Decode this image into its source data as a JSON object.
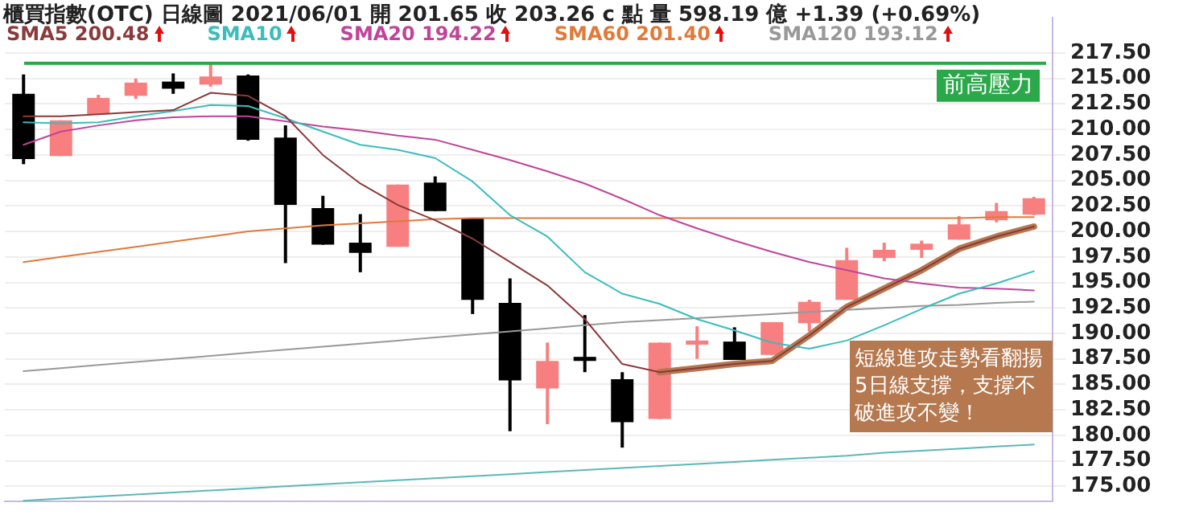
{
  "chart_data": {
    "type": "candlestick",
    "title": "櫃買指數(OTC)  日線圖  2021/06/01  開 201.65  收 203.26 c 點  量 598.19 億  +1.39 (+0.69%)",
    "categories": [
      null,
      null,
      null,
      null,
      null,
      null,
      null,
      null,
      null,
      null,
      null,
      null,
      null,
      null,
      null,
      null,
      null,
      null,
      null,
      null,
      null,
      null,
      null,
      null,
      null,
      null,
      null,
      null
    ],
    "ohlc": [
      [
        213.5,
        215.4,
        206.6,
        207.1
      ],
      [
        207.4,
        210.9,
        207.4,
        210.9
      ],
      [
        211.5,
        213.4,
        211.5,
        213.1
      ],
      [
        213.3,
        215.0,
        213.0,
        214.6
      ],
      [
        214.7,
        215.5,
        213.5,
        214.0
      ],
      [
        214.4,
        216.6,
        214.2,
        215.2
      ],
      [
        215.3,
        215.4,
        208.9,
        209.0
      ],
      [
        209.2,
        210.4,
        196.9,
        202.6
      ],
      [
        202.3,
        203.5,
        198.7,
        198.7
      ],
      [
        198.9,
        201.7,
        196.0,
        197.9
      ],
      [
        198.5,
        204.6,
        198.5,
        204.6
      ],
      [
        204.8,
        205.4,
        202.0,
        202.0
      ],
      [
        201.3,
        201.3,
        191.9,
        193.3
      ],
      [
        193.0,
        195.4,
        180.4,
        185.4
      ],
      [
        184.6,
        189.1,
        181.1,
        187.3
      ],
      [
        187.7,
        191.8,
        186.2,
        187.3
      ],
      [
        185.5,
        186.2,
        178.8,
        181.3
      ],
      [
        181.6,
        189.1,
        181.6,
        189.1
      ],
      [
        188.9,
        190.7,
        187.5,
        189.3
      ],
      [
        189.2,
        190.6,
        187.4,
        187.4
      ],
      [
        187.9,
        191.1,
        187.9,
        191.1
      ],
      [
        191.0,
        193.3,
        190.2,
        193.1
      ],
      [
        193.3,
        198.4,
        193.3,
        197.2
      ],
      [
        197.4,
        198.9,
        197.1,
        198.2
      ],
      [
        198.2,
        199.1,
        197.4,
        198.8
      ],
      [
        199.2,
        201.5,
        199.2,
        200.7
      ],
      [
        201.1,
        202.8,
        200.9,
        202.0
      ],
      [
        201.65,
        203.4,
        201.6,
        203.26
      ]
    ],
    "colors": [
      "#000000",
      "#f77f7f",
      "#f77f7f",
      "#f77f7f",
      "#000000",
      "#f77f7f",
      "#000000",
      "#000000",
      "#000000",
      "#000000",
      "#f77f7f",
      "#000000",
      "#000000",
      "#000000",
      "#f77f7f",
      "#000000",
      "#000000",
      "#f77f7f",
      "#f77f7f",
      "#000000",
      "#f77f7f",
      "#f77f7f",
      "#f77f7f",
      "#f77f7f",
      "#f77f7f",
      "#f77f7f",
      "#f77f7f",
      "#f77f7f"
    ],
    "series": [
      {
        "type": "line",
        "name": "SMA5 200.48",
        "color": "#8a3a3a",
        "values": [
          211.3,
          211.3,
          211.5,
          211.7,
          211.9,
          213.6,
          213.3,
          211.3,
          207.5,
          204.7,
          202.6,
          201.1,
          199.3,
          197.0,
          194.7,
          191.4,
          187.0,
          186.2,
          186.6,
          187.0,
          187.3,
          189.8,
          192.6,
          194.4,
          196.2,
          198.3,
          199.5,
          200.48
        ]
      },
      {
        "type": "line",
        "name": "SMA10",
        "color": "#3cbcbc",
        "values": [
          210.7,
          210.6,
          210.7,
          211.3,
          211.8,
          212.4,
          212.3,
          211.1,
          209.8,
          208.5,
          208.0,
          207.2,
          204.9,
          201.6,
          199.5,
          196.0,
          193.9,
          192.9,
          191.4,
          190.3,
          189.1,
          188.5,
          189.3,
          190.8,
          192.4,
          193.9,
          194.9,
          196.1
        ]
      },
      {
        "type": "line",
        "name": "SMA20 194.22",
        "color": "#c0449a",
        "values": [
          208.5,
          209.8,
          210.4,
          210.9,
          211.2,
          211.3,
          211.3,
          210.8,
          210.3,
          209.9,
          209.4,
          209.0,
          208.0,
          207.0,
          205.9,
          204.7,
          203.2,
          201.6,
          200.3,
          199.1,
          198.0,
          197.0,
          196.2,
          195.4,
          194.9,
          194.5,
          194.4,
          194.22
        ]
      },
      {
        "type": "line",
        "name": "SMA60 201.40",
        "color": "#e07a3a",
        "values": [
          197.0,
          197.5,
          198.0,
          198.5,
          199.0,
          199.5,
          200.0,
          200.3,
          200.6,
          200.8,
          201.0,
          201.2,
          201.3,
          201.3,
          201.3,
          201.3,
          201.3,
          201.3,
          201.3,
          201.3,
          201.3,
          201.3,
          201.3,
          201.3,
          201.3,
          201.3,
          201.4,
          201.4
        ]
      },
      {
        "type": "line",
        "name": "SMA120 193.12",
        "color": "#999999",
        "values": [
          186.3,
          186.6,
          186.9,
          187.2,
          187.5,
          187.8,
          188.1,
          188.4,
          188.7,
          189.0,
          189.3,
          189.6,
          189.9,
          190.2,
          190.5,
          190.8,
          191.1,
          191.3,
          191.5,
          191.7,
          191.9,
          192.1,
          192.3,
          192.5,
          192.7,
          192.8,
          193.0,
          193.12
        ]
      },
      {
        "type": "line",
        "color": "#5cb8b8",
        "values": [
          173.6,
          173.8,
          174.0,
          174.2,
          174.4,
          174.6,
          174.8,
          175.0,
          175.2,
          175.4,
          175.6,
          175.8,
          176.0,
          176.2,
          176.4,
          176.6,
          176.8,
          177.0,
          177.2,
          177.4,
          177.6,
          177.8,
          178.0,
          178.3,
          178.5,
          178.7,
          178.9,
          179.1
        ]
      },
      {
        "type": "line",
        "color": "#b5784f",
        "values": [
          null,
          null,
          null,
          null,
          null,
          null,
          null,
          null,
          null,
          null,
          null,
          null,
          null,
          null,
          null,
          null,
          null,
          186.2,
          186.6,
          187.0,
          187.3,
          189.8,
          192.6,
          194.4,
          196.2,
          198.3,
          199.5,
          200.48
        ]
      }
    ],
    "ylim": [
      173.5,
      221.0
    ],
    "yticks": [
      {
        "value": 175,
        "label": "175.00"
      },
      {
        "value": 177.5,
        "label": "177.50"
      },
      {
        "value": 180,
        "label": "180.00"
      },
      {
        "value": 182.5,
        "label": "182.50"
      },
      {
        "value": 185,
        "label": "185.00"
      },
      {
        "value": 187.5,
        "label": "187.50"
      },
      {
        "value": 190,
        "label": "190.00"
      },
      {
        "value": 192.5,
        "label": "192.50"
      },
      {
        "value": 195,
        "label": "195.00"
      },
      {
        "value": 197.5,
        "label": "197.50"
      },
      {
        "value": 200,
        "label": "200.00"
      },
      {
        "value": 202.5,
        "label": "202.50"
      },
      {
        "value": 205,
        "label": "205.00"
      },
      {
        "value": 207.5,
        "label": "207.50"
      },
      {
        "value": 210,
        "label": "210.00"
      },
      {
        "value": 212.5,
        "label": "212.50"
      },
      {
        "value": 215,
        "label": "215.00"
      },
      {
        "value": 217.5,
        "label": "217.50"
      }
    ],
    "ref_lines": [
      {
        "axis": "y",
        "value": 216.5,
        "label": "前高壓力",
        "color": "#2aa84a"
      }
    ],
    "annotations": [
      "短線進攻走勢看翻揚5日線支撐，支撐不破進攻不變！"
    ],
    "grid": "y",
    "legend": "top",
    "tick_labels": "y",
    "marker": "none",
    "line_style": "solid"
  }
}
